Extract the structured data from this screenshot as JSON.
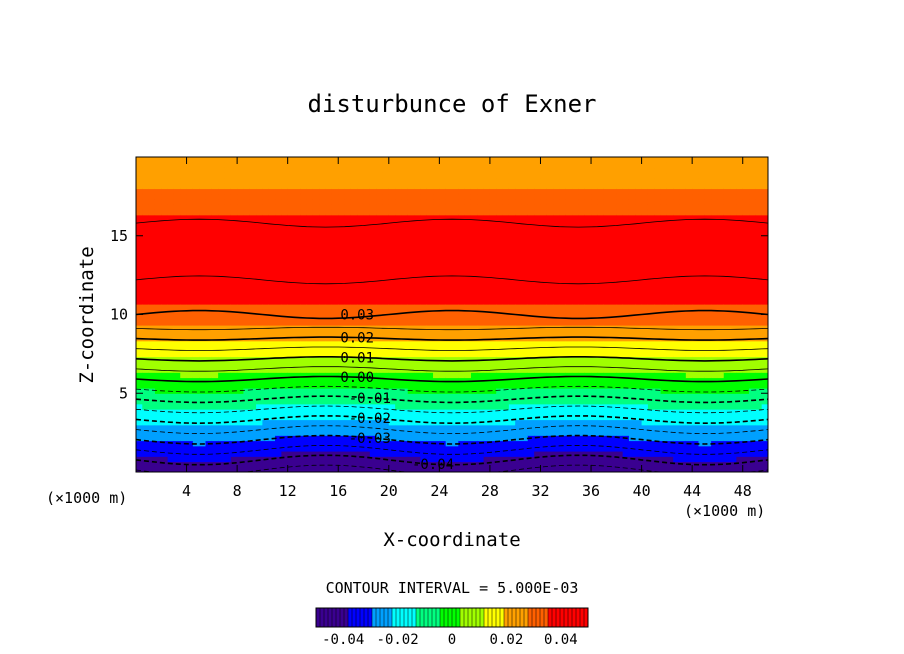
{
  "chart_data": {
    "type": "heatmap",
    "title": "disturbunce of Exner",
    "xlabel": "X-coordinate",
    "ylabel": "Z-coordinate",
    "x_unit": "(×1000 m)",
    "z_unit": "(×1000 m)",
    "x_range": [
      0,
      50
    ],
    "z_range": [
      0,
      20
    ],
    "x_ticks": [
      4,
      8,
      12,
      16,
      20,
      24,
      28,
      32,
      36,
      40,
      44,
      48
    ],
    "z_ticks": [
      5,
      10,
      15
    ],
    "contour_interval_text": "CONTOUR INTERVAL = 5.000E-03",
    "contour_labels": [
      {
        "text": "0.03",
        "value": 0.03,
        "x": 17.5
      },
      {
        "text": "0.02",
        "value": 0.02,
        "x": 17.5
      },
      {
        "text": "0.01",
        "value": 0.01,
        "x": 17.5
      },
      {
        "text": "0.00",
        "value": 0.0,
        "x": 17.5
      },
      {
        "text": "-0.01",
        "value": -0.01,
        "x": 18.5
      },
      {
        "text": "-0.02",
        "value": -0.02,
        "x": 18.5
      },
      {
        "text": "-0.03",
        "value": -0.03,
        "x": 18.5
      },
      {
        "text": "-0.04",
        "value": -0.04,
        "x": 23.5
      }
    ],
    "colorbar": {
      "range": [
        -0.05,
        0.05
      ],
      "tick_labels": [
        {
          "text": "-0.04",
          "value": -0.04
        },
        {
          "text": "-0.02",
          "value": -0.02
        },
        {
          "text": "0",
          "value": 0
        },
        {
          "text": "0.02",
          "value": 0.02
        },
        {
          "text": "0.04",
          "value": 0.04
        }
      ]
    },
    "value_range": [
      -0.046,
      0.044
    ],
    "colormap": [
      "#3a0090",
      "#0000ff",
      "#00a0ff",
      "#00ffff",
      "#00ff80",
      "#00ff00",
      "#a0ff00",
      "#ffff00",
      "#ffa000",
      "#ff6000",
      "#ff0000"
    ]
  }
}
